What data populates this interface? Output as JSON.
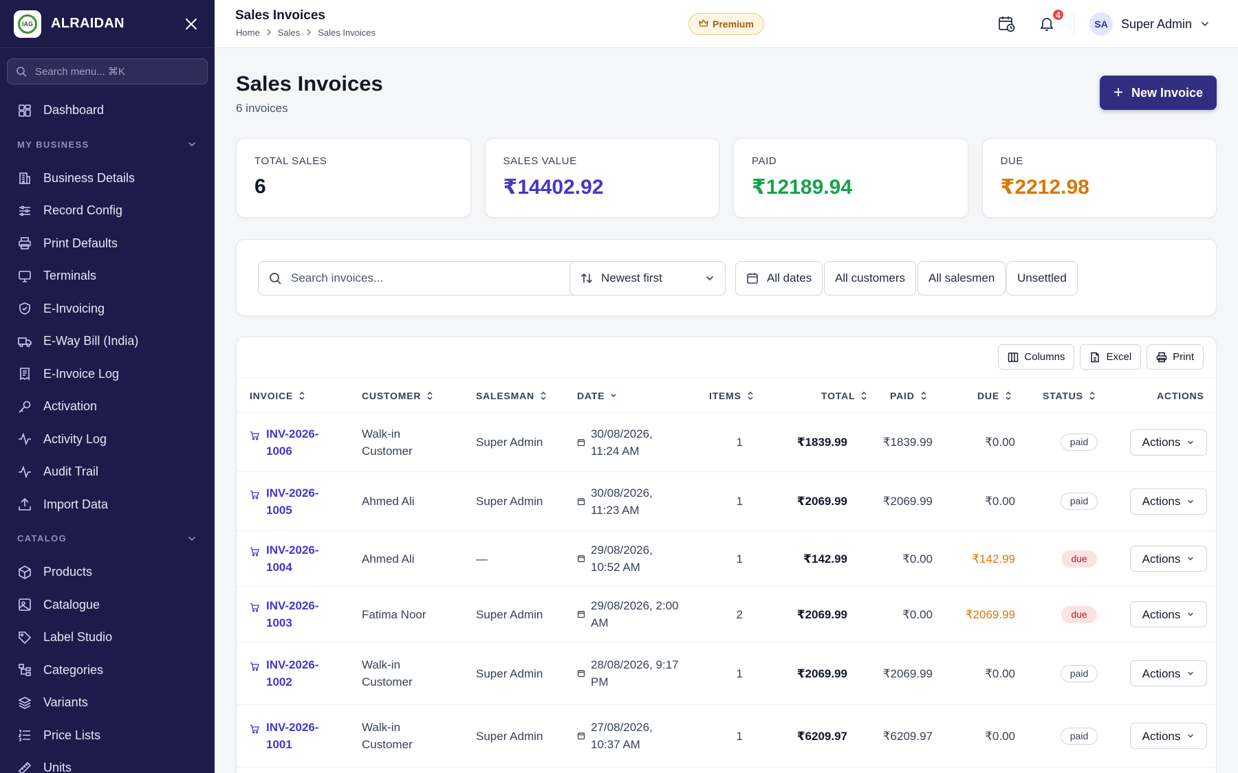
{
  "app": {
    "brand": "ALRAIDAN",
    "logo_text": "IAG"
  },
  "sidebar": {
    "search_placeholder": "Search menu... ⌘K",
    "top_item": {
      "label": "Dashboard",
      "icon": "dashboard-icon"
    },
    "sections": [
      {
        "title": "MY BUSINESS",
        "items": [
          {
            "label": "Business Details",
            "icon": "building-icon"
          },
          {
            "label": "Record Config",
            "icon": "sliders-icon"
          },
          {
            "label": "Print Defaults",
            "icon": "printer-icon"
          },
          {
            "label": "Terminals",
            "icon": "monitor-icon"
          },
          {
            "label": "E-Invoicing",
            "icon": "shield-check-icon"
          },
          {
            "label": "E-Way Bill (India)",
            "icon": "truck-icon"
          },
          {
            "label": "E-Invoice Log",
            "icon": "receipt-icon"
          },
          {
            "label": "Activation",
            "icon": "key-icon"
          },
          {
            "label": "Activity Log",
            "icon": "activity-icon"
          },
          {
            "label": "Audit Trail",
            "icon": "activity-icon"
          },
          {
            "label": "Import Data",
            "icon": "upload-icon"
          }
        ]
      },
      {
        "title": "CATALOG",
        "items": [
          {
            "label": "Products",
            "icon": "box-icon"
          },
          {
            "label": "Catalogue",
            "icon": "image-icon"
          },
          {
            "label": "Label Studio",
            "icon": "tag-icon"
          },
          {
            "label": "Categories",
            "icon": "tree-icon"
          },
          {
            "label": "Variants",
            "icon": "layers-icon"
          },
          {
            "label": "Price Lists",
            "icon": "list-icon"
          },
          {
            "label": "Units",
            "icon": "ruler-icon"
          }
        ]
      }
    ]
  },
  "topbar": {
    "title": "Sales Invoices",
    "breadcrumb": [
      "Home",
      "Sales",
      "Sales Invoices"
    ],
    "premium_label": "Premium",
    "notification_count": "4",
    "user": {
      "initials": "SA",
      "name": "Super Admin"
    }
  },
  "page": {
    "title": "Sales Invoices",
    "subtitle": "6 invoices",
    "new_button": "New Invoice"
  },
  "stats": [
    {
      "label": "TOTAL SALES",
      "value": "6",
      "color": "#111827"
    },
    {
      "label": "SALES VALUE",
      "value": "₹14402.92",
      "color": "#4338ca"
    },
    {
      "label": "PAID",
      "value": "₹12189.94",
      "color": "#16a34a"
    },
    {
      "label": "DUE",
      "value": "₹2212.98",
      "color": "#d97706"
    }
  ],
  "filters": {
    "search_placeholder": "Search invoices...",
    "sort": "Newest first",
    "dates": "All dates",
    "customers": "All customers",
    "salesmen": "All salesmen",
    "settlement": "Unsettled"
  },
  "table": {
    "tools": {
      "columns": "Columns",
      "excel": "Excel",
      "print": "Print"
    },
    "headers": {
      "invoice": "INVOICE",
      "customer": "CUSTOMER",
      "salesman": "SALESMAN",
      "date": "DATE",
      "items": "ITEMS",
      "total": "TOTAL",
      "paid": "PAID",
      "due": "DUE",
      "status": "STATUS",
      "actions": "ACTIONS"
    },
    "rows": [
      {
        "invoice": [
          "INV-2026-",
          "1006"
        ],
        "customer": [
          "Walk-in",
          "Customer"
        ],
        "salesman": "Super Admin",
        "date": [
          "30/08/2026,",
          "11:24 AM"
        ],
        "items": "1",
        "total": "₹1839.99",
        "paid": "₹1839.99",
        "due": "₹0.00",
        "status": "paid",
        "action": "Actions"
      },
      {
        "invoice": [
          "INV-2026-",
          "1005"
        ],
        "customer": [
          "Ahmed Ali"
        ],
        "salesman": "Super Admin",
        "date": [
          "30/08/2026,",
          "11:23 AM"
        ],
        "items": "1",
        "total": "₹2069.99",
        "paid": "₹2069.99",
        "due": "₹0.00",
        "status": "paid",
        "action": "Actions"
      },
      {
        "invoice": [
          "INV-2026-",
          "1004"
        ],
        "customer": [
          "Ahmed Ali"
        ],
        "salesman": "—",
        "date": [
          "29/08/2026,",
          "10:52 AM"
        ],
        "items": "1",
        "total": "₹142.99",
        "paid": "₹0.00",
        "due": "₹142.99",
        "status": "due",
        "action": "Actions"
      },
      {
        "invoice": [
          "INV-2026-",
          "1003"
        ],
        "customer": [
          "Fatima Noor"
        ],
        "salesman": "Super Admin",
        "date": [
          "29/08/2026, 2:00",
          "AM"
        ],
        "items": "2",
        "total": "₹2069.99",
        "paid": "₹0.00",
        "due": "₹2069.99",
        "status": "due",
        "action": "Actions"
      },
      {
        "invoice": [
          "INV-2026-",
          "1002"
        ],
        "customer": [
          "Walk-in",
          "Customer"
        ],
        "salesman": "Super Admin",
        "date": [
          "28/08/2026, 9:17",
          "PM"
        ],
        "items": "1",
        "total": "₹2069.99",
        "paid": "₹2069.99",
        "due": "₹0.00",
        "status": "paid",
        "action": "Actions"
      },
      {
        "invoice": [
          "INV-2026-",
          "1001"
        ],
        "customer": [
          "Walk-in",
          "Customer"
        ],
        "salesman": "Super Admin",
        "date": [
          "27/08/2026,",
          "10:37 AM"
        ],
        "items": "1",
        "total": "₹6209.97",
        "paid": "₹6209.97",
        "due": "₹0.00",
        "status": "paid",
        "action": "Actions"
      }
    ]
  },
  "colors": {
    "sidebar_bg": "#1e1b4b",
    "accent": "#312e81",
    "link": "#4338ca",
    "paid": "#16a34a",
    "due": "#d97706"
  }
}
